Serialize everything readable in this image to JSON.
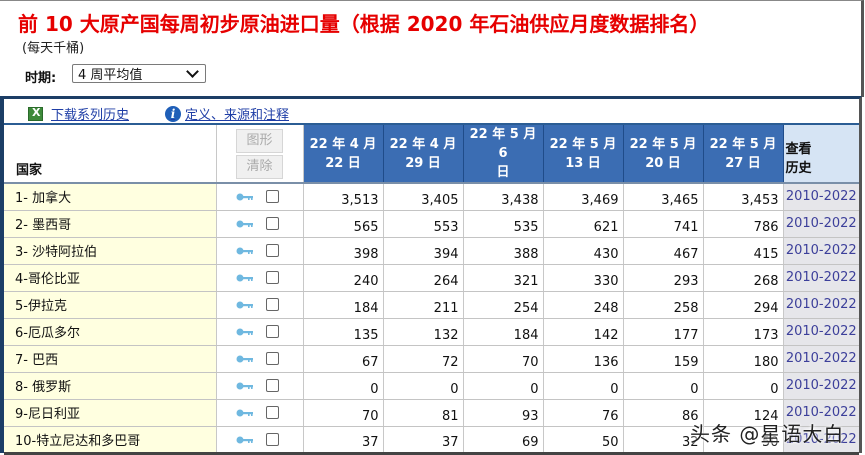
{
  "header": {
    "title": "前 10 大原产国每周初步原油进口量（根据 2020 年石油供应月度数据排名）",
    "unit": "(每天千桶)",
    "period_label": "时期:",
    "period_value": "4 周平均值"
  },
  "toolbar": {
    "download_label": "下载系列历史",
    "definitions_label": "定义、来源和注释"
  },
  "table": {
    "country_header": "国家",
    "chart_button": "图形",
    "clear_button": "清除",
    "history_header_1": "查看",
    "history_header_2": "历史",
    "date_headers": [
      {
        "line1": "22 年 4 月",
        "line2": "22 日"
      },
      {
        "line1": "22 年 4 月",
        "line2": "29 日"
      },
      {
        "line1": "22 年 5 月 6",
        "line2": "日"
      },
      {
        "line1": "22 年 5 月",
        "line2": "13 日"
      },
      {
        "line1": "22 年 5 月",
        "line2": "20 日"
      },
      {
        "line1": "22 年 5 月",
        "line2": "27 日"
      }
    ],
    "rows": [
      {
        "country": "1- 加拿大",
        "values": [
          "3,513",
          "3,405",
          "3,438",
          "3,469",
          "3,465",
          "3,453"
        ],
        "history": "2010-2022"
      },
      {
        "country": "2- 墨西哥",
        "values": [
          "565",
          "553",
          "535",
          "621",
          "741",
          "786"
        ],
        "history": "2010-2022"
      },
      {
        "country": "3- 沙特阿拉伯",
        "values": [
          "398",
          "394",
          "388",
          "430",
          "467",
          "415"
        ],
        "history": "2010-2022"
      },
      {
        "country": "4-哥伦比亚",
        "values": [
          "240",
          "264",
          "321",
          "330",
          "293",
          "268"
        ],
        "history": "2010-2022"
      },
      {
        "country": "5-伊拉克",
        "values": [
          "184",
          "211",
          "254",
          "248",
          "258",
          "294"
        ],
        "history": "2010-2022"
      },
      {
        "country": "6-厄瓜多尔",
        "values": [
          "135",
          "132",
          "184",
          "142",
          "177",
          "173"
        ],
        "history": "2010-2022"
      },
      {
        "country": "7- 巴西",
        "values": [
          "67",
          "72",
          "70",
          "136",
          "159",
          "180"
        ],
        "history": "2010-2022"
      },
      {
        "country": "8- 俄罗斯",
        "values": [
          "0",
          "0",
          "0",
          "0",
          "0",
          "0"
        ],
        "history": "2010-2022"
      },
      {
        "country": "9-尼日利亚",
        "values": [
          "70",
          "81",
          "93",
          "76",
          "86",
          "124"
        ],
        "history": "2010-2022"
      },
      {
        "country": "10-特立尼达和多巴哥",
        "values": [
          "37",
          "37",
          "69",
          "50",
          "32",
          "50"
        ],
        "history": "2010-2022"
      }
    ]
  },
  "watermark": "头条 @星语大白",
  "colors": {
    "title": "#e60000",
    "header_blue": "#3b6db3",
    "country_bg": "#ffffe0",
    "history_link": "#3c3f9a",
    "link": "#1f3ea6"
  }
}
